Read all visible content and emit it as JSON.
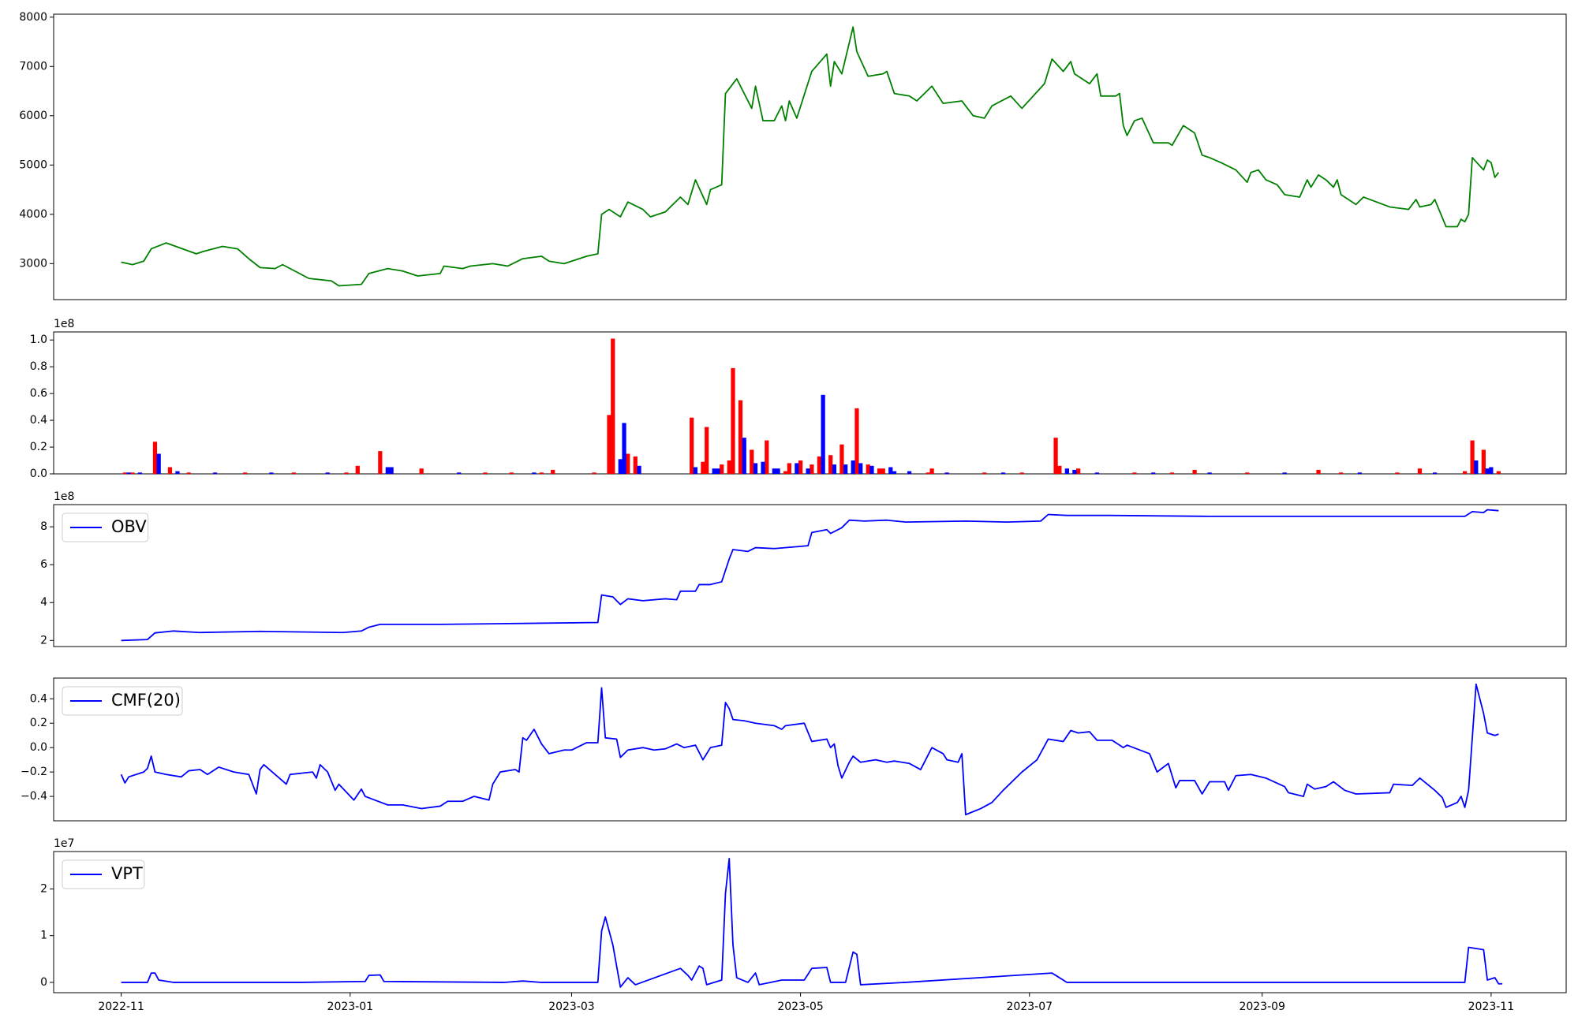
{
  "chart_data": [
    {
      "type": "line",
      "xlim": [
        -18,
        385
      ],
      "ylim": [
        2270,
        8060
      ],
      "yticks": [
        3000,
        4000,
        5000,
        6000,
        7000,
        8000
      ],
      "x": [
        0,
        3,
        6,
        8,
        12,
        20,
        22,
        27,
        31,
        34,
        37,
        41,
        43,
        50,
        56,
        58,
        64,
        66,
        71,
        75,
        79,
        85,
        86,
        91,
        93,
        99,
        103,
        107,
        112,
        114,
        118,
        124,
        127,
        128,
        130,
        133,
        135,
        139,
        141,
        145,
        149,
        151,
        153,
        156,
        157,
        160,
        161,
        164,
        168,
        169,
        171,
        174,
        176,
        177,
        178,
        180,
        184,
        188,
        189,
        190,
        192,
        195,
        196,
        199,
        203,
        204,
        206,
        210,
        212,
        216,
        219,
        224,
        227,
        230,
        232,
        237,
        240,
        246,
        248,
        251,
        253,
        254,
        258,
        260,
        261,
        265,
        266,
        267,
        268,
        270,
        272,
        275,
        279,
        280,
        283,
        286,
        288,
        290,
        293,
        297,
        300,
        301,
        303,
        305,
        308,
        310,
        314,
        316,
        317,
        319,
        321,
        323,
        324,
        325,
        329,
        331,
        338,
        343,
        345,
        346,
        349,
        350,
        353,
        356,
        357,
        358,
        359,
        360,
        363,
        364,
        365,
        366,
        367
      ],
      "series": [
        {
          "color": "#008000",
          "values": [
            3030,
            2980,
            3050,
            3300,
            3420,
            3200,
            3250,
            3350,
            3300,
            3100,
            2920,
            2900,
            2980,
            2700,
            2650,
            2550,
            2580,
            2800,
            2900,
            2850,
            2750,
            2800,
            2950,
            2900,
            2950,
            3000,
            2950,
            3100,
            3150,
            3050,
            3000,
            3150,
            3200,
            4000,
            4100,
            3950,
            4250,
            4100,
            3950,
            4050,
            4350,
            4200,
            4700,
            4200,
            4500,
            4600,
            6450,
            6750,
            6150,
            6600,
            5900,
            5900,
            6200,
            5900,
            6300,
            5950,
            6900,
            7250,
            6600,
            7100,
            6850,
            7800,
            7300,
            6800,
            6850,
            6900,
            6450,
            6400,
            6300,
            6600,
            6250,
            6300,
            6000,
            5950,
            6200,
            6400,
            6150,
            6650,
            7150,
            6900,
            7100,
            6850,
            6650,
            6850,
            6400,
            6400,
            6450,
            5800,
            5600,
            5900,
            5950,
            5450,
            5450,
            5400,
            5800,
            5650,
            5200,
            5150,
            5050,
            4900,
            4650,
            4850,
            4900,
            4700,
            4600,
            4400,
            4350,
            4700,
            4550,
            4800,
            4700,
            4550,
            4700,
            4400,
            4200,
            4350,
            4150,
            4100,
            4300,
            4150,
            4200,
            4300,
            3750,
            3750,
            3900,
            3850,
            4000,
            5150,
            4900,
            5100,
            5050,
            4750,
            4850
          ]
        }
      ]
    },
    {
      "type": "bar",
      "xlim": [
        -18,
        385
      ],
      "ylim": [
        0,
        1.06
      ],
      "offset_text": "1e8",
      "yticks": [
        {
          "value": 0,
          "label": "0.0"
        },
        0.2,
        0.4,
        0.6,
        0.8,
        {
          "value": 1,
          "label": "1.0"
        }
      ],
      "series": [
        {
          "color": "#ff0000",
          "x": [
            1,
            3,
            9,
            13,
            18,
            33,
            46,
            60,
            63,
            69,
            80,
            97,
            104,
            112,
            115,
            126,
            130,
            131,
            135,
            137,
            152,
            155,
            156,
            160,
            162,
            163,
            165,
            168,
            172,
            177,
            178,
            181,
            184,
            186,
            189,
            192,
            196,
            199,
            202,
            203,
            215,
            216,
            230,
            240,
            249,
            250,
            255,
            270,
            280,
            286,
            300,
            319,
            325,
            340,
            346,
            358,
            360,
            363,
            367
          ],
          "values": [
            0.01,
            0.01,
            0.24,
            0.05,
            0.01,
            0.01,
            0.01,
            0.01,
            0.06,
            0.17,
            0.04,
            0.01,
            0.01,
            0.01,
            0.03,
            0.01,
            0.44,
            1.01,
            0.15,
            0.13,
            0.42,
            0.09,
            0.35,
            0.07,
            0.1,
            0.79,
            0.55,
            0.18,
            0.25,
            0.02,
            0.08,
            0.1,
            0.07,
            0.13,
            0.14,
            0.22,
            0.49,
            0.07,
            0.04,
            0.04,
            0.01,
            0.04,
            0.01,
            0.01,
            0.27,
            0.06,
            0.04,
            0.01,
            0.01,
            0.03,
            0.01,
            0.03,
            0.01,
            0.01,
            0.04,
            0.02,
            0.25,
            0.18,
            0.02
          ]
        },
        {
          "color": "#0000ff",
          "x": [
            2,
            5,
            10,
            15,
            25,
            40,
            55,
            71,
            72,
            90,
            110,
            133,
            134,
            138,
            153,
            158,
            159,
            166,
            169,
            171,
            174,
            175,
            180,
            183,
            187,
            190,
            193,
            195,
            197,
            200,
            205,
            206,
            210,
            220,
            235,
            252,
            254,
            260,
            275,
            290,
            310,
            330,
            350,
            361,
            364,
            365
          ],
          "values": [
            0.01,
            0.01,
            0.15,
            0.02,
            0.01,
            0.01,
            0.01,
            0.05,
            0.05,
            0.01,
            0.01,
            0.11,
            0.38,
            0.06,
            0.05,
            0.04,
            0.04,
            0.27,
            0.08,
            0.09,
            0.04,
            0.04,
            0.08,
            0.04,
            0.59,
            0.07,
            0.07,
            0.1,
            0.08,
            0.06,
            0.05,
            0.02,
            0.02,
            0.01,
            0.01,
            0.04,
            0.03,
            0.01,
            0.01,
            0.01,
            0.01,
            0.01,
            0.01,
            0.1,
            0.04,
            0.05
          ]
        }
      ]
    },
    {
      "type": "line",
      "xlim": [
        -18,
        385
      ],
      "ylim": [
        1.68,
        9.17
      ],
      "offset_text": "1e8",
      "yticks": [
        2,
        4,
        6,
        8
      ],
      "legend": "upper left",
      "x": [
        0,
        7,
        9,
        14,
        21,
        37,
        48,
        59,
        64,
        66,
        69,
        85,
        107,
        127,
        128,
        131,
        133,
        135,
        139,
        145,
        148,
        149,
        153,
        154,
        157,
        160,
        162,
        163,
        167,
        169,
        174,
        180,
        183,
        184,
        188,
        189,
        192,
        194,
        198,
        204,
        209,
        225,
        236,
        245,
        247,
        252,
        263,
        290,
        317,
        344,
        358,
        360,
        363,
        364,
        367
      ],
      "series": [
        {
          "name": "OBV",
          "color": "#0000ff",
          "values": [
            2,
            2.05,
            2.4,
            2.5,
            2.42,
            2.48,
            2.45,
            2.42,
            2.5,
            2.7,
            2.85,
            2.85,
            2.9,
            2.95,
            4.4,
            4.3,
            3.9,
            4.2,
            4.1,
            4.2,
            4.15,
            4.6,
            4.6,
            4.95,
            4.95,
            5.1,
            6.3,
            6.8,
            6.7,
            6.9,
            6.85,
            6.95,
            7.0,
            7.7,
            7.85,
            7.65,
            7.95,
            8.35,
            8.3,
            8.35,
            8.25,
            8.3,
            8.25,
            8.3,
            8.65,
            8.6,
            8.6,
            8.55,
            8.55,
            8.55,
            8.55,
            8.8,
            8.75,
            8.9,
            8.85
          ]
        }
      ]
    },
    {
      "type": "line",
      "xlim": [
        -18,
        385
      ],
      "ylim": [
        -0.6,
        0.57
      ],
      "legend": "upper left",
      "yticks": [
        {
          "value": -0.4,
          "label": "−0.4"
        },
        {
          "value": -0.2,
          "label": "−0.2"
        },
        {
          "value": 0,
          "label": "0.0"
        },
        0.2,
        0.4
      ],
      "x": [
        0,
        1,
        2,
        6,
        7,
        8,
        9,
        12,
        16,
        18,
        21,
        23,
        26,
        30,
        34,
        36,
        37,
        38,
        44,
        45,
        51,
        52,
        53,
        55,
        57,
        58,
        62,
        64,
        65,
        71,
        75,
        80,
        85,
        87,
        91,
        94,
        98,
        99,
        101,
        105,
        106,
        107,
        108,
        110,
        112,
        114,
        118,
        120,
        124,
        127,
        128,
        129,
        132,
        133,
        135,
        139,
        142,
        145,
        148,
        150,
        153,
        155,
        157,
        160,
        161,
        162,
        163,
        166,
        169,
        174,
        176,
        177,
        182,
        184,
        188,
        189,
        190,
        191,
        192,
        194,
        195,
        197,
        201,
        204,
        206,
        210,
        213,
        216,
        219,
        220,
        223,
        224,
        225,
        229,
        232,
        235,
        240,
        244,
        247,
        251,
        253,
        255,
        258,
        260,
        264,
        267,
        268,
        274,
        276,
        279,
        281,
        282,
        286,
        288,
        290,
        294,
        295,
        297,
        301,
        305,
        310,
        311,
        315,
        316,
        318,
        321,
        323,
        326,
        329,
        338,
        339,
        344,
        346,
        350,
        352,
        353,
        356,
        357,
        358,
        359,
        361,
        363,
        364,
        366,
        367
      ],
      "series": [
        {
          "name": "CMF(20)",
          "color": "#0000ff",
          "values": [
            -0.22,
            -0.29,
            -0.24,
            -0.2,
            -0.17,
            -0.07,
            -0.2,
            -0.22,
            -0.24,
            -0.19,
            -0.18,
            -0.22,
            -0.16,
            -0.2,
            -0.22,
            -0.38,
            -0.18,
            -0.14,
            -0.3,
            -0.22,
            -0.2,
            -0.25,
            -0.14,
            -0.2,
            -0.35,
            -0.3,
            -0.43,
            -0.34,
            -0.4,
            -0.47,
            -0.47,
            -0.5,
            -0.48,
            -0.44,
            -0.44,
            -0.4,
            -0.43,
            -0.3,
            -0.2,
            -0.18,
            -0.2,
            0.08,
            0.06,
            0.15,
            0.03,
            -0.05,
            -0.02,
            -0.02,
            0.04,
            0.04,
            0.49,
            0.08,
            0.07,
            -0.08,
            -0.02,
            0,
            -0.02,
            -0.01,
            0.03,
            0,
            0.02,
            -0.1,
            0,
            0.02,
            0.37,
            0.32,
            0.23,
            0.22,
            0.2,
            0.18,
            0.15,
            0.18,
            0.2,
            0.05,
            0.07,
            0,
            0.03,
            -0.15,
            -0.25,
            -0.12,
            -0.07,
            -0.12,
            -0.1,
            -0.12,
            -0.11,
            -0.13,
            -0.18,
            0,
            -0.05,
            -0.1,
            -0.12,
            -0.05,
            -0.55,
            -0.5,
            -0.45,
            -0.35,
            -0.2,
            -0.1,
            0.07,
            0.05,
            0.14,
            0.12,
            0.13,
            0.06,
            0.06,
            0,
            0.02,
            -0.05,
            -0.2,
            -0.13,
            -0.33,
            -0.27,
            -0.27,
            -0.38,
            -0.28,
            -0.28,
            -0.35,
            -0.23,
            -0.22,
            -0.25,
            -0.32,
            -0.37,
            -0.4,
            -0.3,
            -0.34,
            -0.32,
            -0.28,
            -0.35,
            -0.38,
            -0.37,
            -0.3,
            -0.31,
            -0.25,
            -0.35,
            -0.41,
            -0.49,
            -0.45,
            -0.4,
            -0.49,
            -0.35,
            0.52,
            0.28,
            0.12,
            0.1,
            0.11
          ]
        }
      ]
    },
    {
      "type": "line",
      "xlim": [
        -18,
        385
      ],
      "ylim": [
        -0.22,
        2.8
      ],
      "offset_text": "1e7",
      "yticks": [
        0,
        1,
        2
      ],
      "legend": "upper left",
      "xticks": [
        {
          "value": 0,
          "label": "2022-11"
        },
        {
          "value": 61,
          "label": "2023-01"
        },
        {
          "value": 120,
          "label": "2023-03"
        },
        {
          "value": 181,
          "label": "2023-05"
        },
        {
          "value": 242,
          "label": "2023-07"
        },
        {
          "value": 304,
          "label": "2023-09"
        },
        {
          "value": 365,
          "label": "2023-11"
        }
      ],
      "x": [
        0,
        7,
        8,
        9,
        10,
        14,
        48,
        65,
        66,
        69,
        70,
        102,
        107,
        112,
        127,
        128,
        129,
        131,
        133,
        135,
        137,
        149,
        151,
        152,
        154,
        155,
        156,
        160,
        161,
        162,
        163,
        164,
        167,
        169,
        170,
        173,
        176,
        182,
        184,
        188,
        189,
        193,
        195,
        196,
        197,
        209,
        248,
        249,
        252,
        317,
        358,
        359,
        363,
        364,
        366,
        367,
        368
      ],
      "series": [
        {
          "name": "VPT",
          "color": "#0000ff",
          "values": [
            0,
            0,
            0.2,
            0.2,
            0.05,
            0,
            0,
            0.02,
            0.15,
            0.16,
            0.02,
            0,
            0.03,
            0,
            0,
            1.1,
            1.4,
            0.8,
            -0.1,
            0.1,
            -0.05,
            0.3,
            0.15,
            0.05,
            0.35,
            0.3,
            -0.05,
            0.05,
            1.9,
            2.65,
            0.8,
            0.1,
            0,
            0.2,
            -0.05,
            0,
            0.05,
            0.05,
            0.3,
            0.32,
            0,
            0,
            0.65,
            0.6,
            -0.05,
            0,
            0.2,
            0.15,
            0,
            0,
            0,
            0.75,
            0.7,
            0.05,
            0.1,
            -0.03,
            -0.03
          ]
        }
      ]
    }
  ]
}
